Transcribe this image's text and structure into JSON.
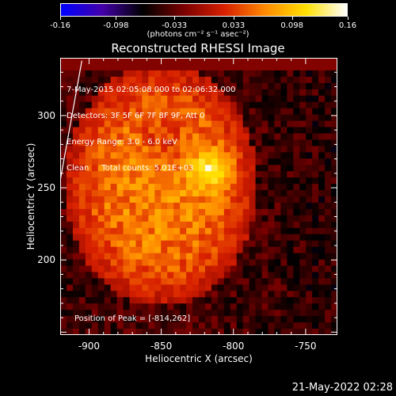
{
  "colorbar": {
    "ticks": [
      "-0.16",
      "-0.098",
      "-0.033",
      "0.033",
      "0.098",
      "0.16"
    ],
    "tick_values": [
      -0.16,
      -0.098,
      -0.033,
      0.033,
      0.098,
      0.16
    ],
    "units": "(photons cm⁻² s⁻¹ asec⁻²)",
    "range": [
      -0.16,
      0.16
    ],
    "palette": [
      "#0000ff",
      "#4400aa",
      "#000000",
      "#7a0000",
      "#d82000",
      "#ff8a00",
      "#ffe000",
      "#ffffff"
    ]
  },
  "chart_data": {
    "type": "heatmap",
    "title": "Reconstructed RHESSI Image",
    "xlabel": "Heliocentric X (arcsec)",
    "ylabel": "Heliocentric Y (arcsec)",
    "xlim": [
      -920,
      -728
    ],
    "ylim": [
      148,
      340
    ],
    "x_ticks": [
      "-900",
      "-850",
      "-800",
      "-750"
    ],
    "x_tick_values": [
      -900,
      -850,
      -800,
      -750
    ],
    "y_ticks": [
      "200",
      "250",
      "300"
    ],
    "y_tick_values": [
      200,
      250,
      300
    ],
    "annotations": [
      "7-May-2015 02:05:08.000 to 02:06:32.000",
      "Detectors: 3F 5F 6F 7F 8F 9F, Att 0",
      "Energy Range: 3.0 - 6.0 keV",
      "Clean     Total counts: 5.01E+03"
    ],
    "peak_label": "Position of Peak = [-814,262]",
    "peak": [
      -814,
      262
    ],
    "limb_line": [
      [
        -920,
        255
      ],
      [
        -905,
        338
      ]
    ]
  },
  "timestamp": "21-May-2022 02:28"
}
